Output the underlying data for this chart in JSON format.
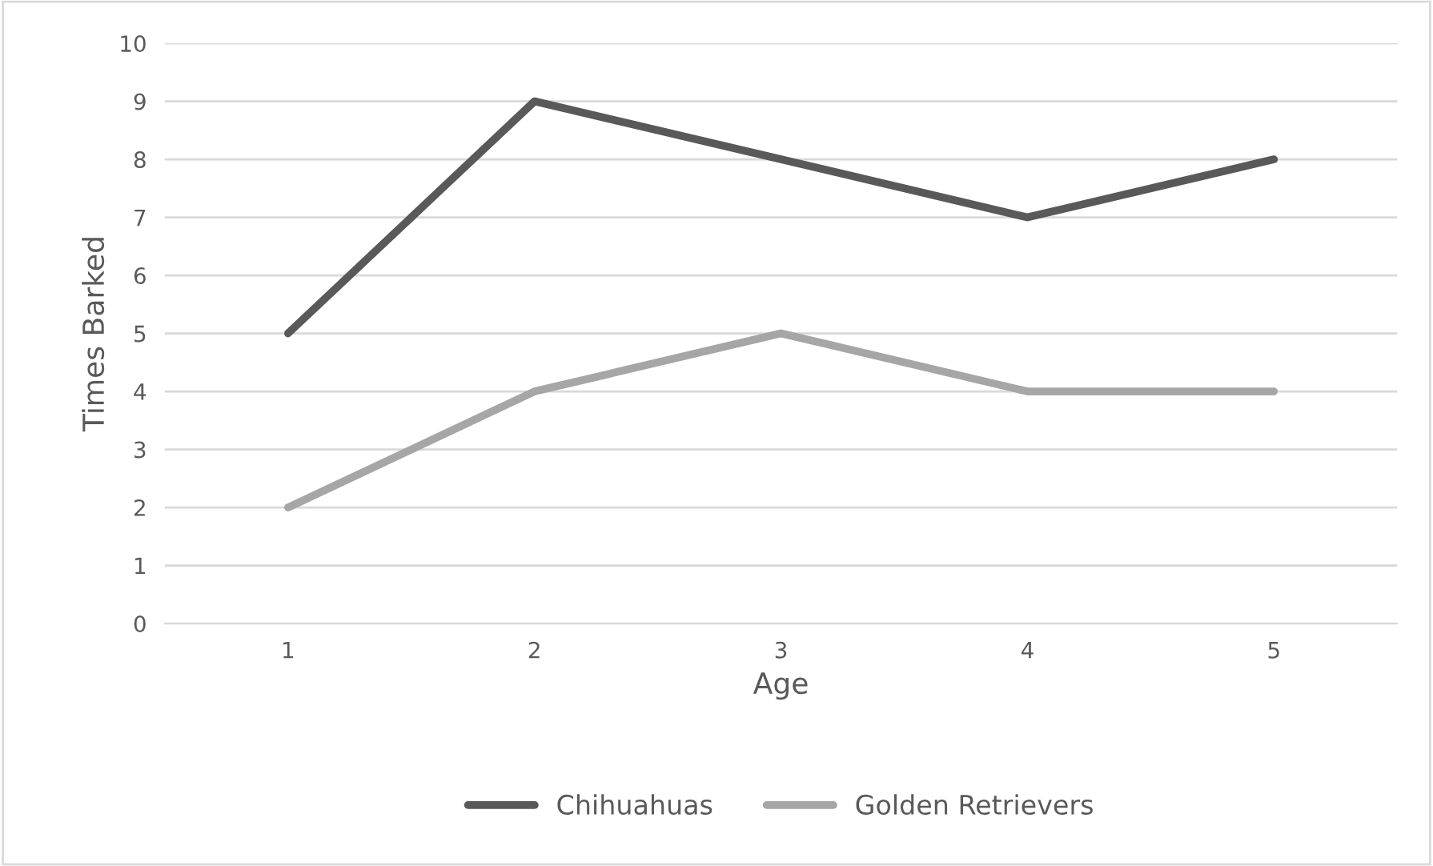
{
  "chart_data": {
    "type": "line",
    "xlabel": "Age",
    "ylabel": "Times Barked",
    "categories": [
      "1",
      "2",
      "3",
      "4",
      "5"
    ],
    "series": [
      {
        "name": "Chihuahuas",
        "color": "#595959",
        "values": [
          5,
          9,
          8,
          7,
          8
        ]
      },
      {
        "name": "Golden Retrievers",
        "color": "#a6a6a6",
        "values": [
          2,
          4,
          5,
          4,
          4
        ]
      }
    ],
    "ylim": [
      0,
      10
    ],
    "yticks": [
      0,
      1,
      2,
      3,
      4,
      5,
      6,
      7,
      8,
      9,
      10
    ],
    "grid": "y",
    "legend": "bottom",
    "marker": "none",
    "line_style": "solid"
  }
}
